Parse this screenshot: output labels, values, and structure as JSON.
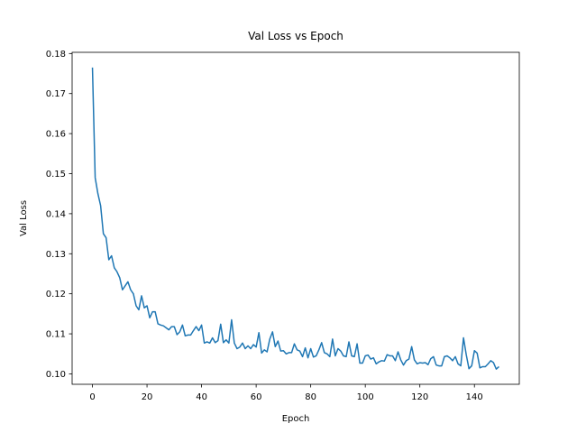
{
  "chart_data": {
    "type": "line",
    "title": "Val Loss vs Epoch",
    "x_label": "Epoch",
    "y_label": "Val Loss",
    "x": [
      0,
      1,
      2,
      3,
      4,
      5,
      6,
      7,
      8,
      9,
      10,
      11,
      12,
      13,
      14,
      15,
      16,
      17,
      18,
      19,
      20,
      21,
      22,
      23,
      24,
      25,
      26,
      27,
      28,
      29,
      30,
      31,
      32,
      33,
      34,
      35,
      36,
      37,
      38,
      39,
      40,
      41,
      42,
      43,
      44,
      45,
      46,
      47,
      48,
      49,
      50,
      51,
      52,
      53,
      54,
      55,
      56,
      57,
      58,
      59,
      60,
      61,
      62,
      63,
      64,
      65,
      66,
      67,
      68,
      69,
      70,
      71,
      72,
      73,
      74,
      75,
      76,
      77,
      78,
      79,
      80,
      81,
      82,
      83,
      84,
      85,
      86,
      87,
      88,
      89,
      90,
      91,
      92,
      93,
      94,
      95,
      96,
      97,
      98,
      99,
      100,
      101,
      102,
      103,
      104,
      105,
      106,
      107,
      108,
      109,
      110,
      111,
      112,
      113,
      114,
      115,
      116,
      117,
      118,
      119,
      120,
      121,
      122,
      123,
      124,
      125,
      126,
      127,
      128,
      129,
      130,
      131,
      132,
      133,
      134,
      135,
      136,
      137,
      138,
      139,
      140,
      141,
      142,
      143,
      144,
      145,
      146,
      147,
      148,
      149
    ],
    "series": [
      {
        "name": "Val Loss",
        "color": "#1f77b4",
        "values": [
          0.1765,
          0.149,
          0.145,
          0.142,
          0.135,
          0.134,
          0.1285,
          0.1295,
          0.1265,
          0.1255,
          0.124,
          0.121,
          0.122,
          0.123,
          0.121,
          0.12,
          0.117,
          0.116,
          0.1195,
          0.1165,
          0.117,
          0.114,
          0.1155,
          0.1155,
          0.1125,
          0.1122,
          0.112,
          0.1115,
          0.111,
          0.1118,
          0.1118,
          0.1098,
          0.1105,
          0.1122,
          0.1095,
          0.1097,
          0.1097,
          0.1108,
          0.1118,
          0.1108,
          0.1122,
          0.1077,
          0.108,
          0.1077,
          0.109,
          0.1078,
          0.1083,
          0.1124,
          0.1078,
          0.1085,
          0.1077,
          0.1135,
          0.1077,
          0.1063,
          0.1067,
          0.1077,
          0.1063,
          0.107,
          0.1063,
          0.1073,
          0.1067,
          0.1103,
          0.1052,
          0.106,
          0.1055,
          0.1087,
          0.1105,
          0.1068,
          0.1082,
          0.1057,
          0.1058,
          0.105,
          0.1053,
          0.1053,
          0.1075,
          0.106,
          0.1057,
          0.1043,
          0.1065,
          0.104,
          0.1063,
          0.1042,
          0.1045,
          0.106,
          0.1078,
          0.1053,
          0.105,
          0.1043,
          0.1087,
          0.1045,
          0.1063,
          0.1057,
          0.1045,
          0.1043,
          0.108,
          0.1045,
          0.1043,
          0.1075,
          0.1027,
          0.1027,
          0.1045,
          0.1047,
          0.1037,
          0.104,
          0.1025,
          0.103,
          0.1033,
          0.1032,
          0.1048,
          0.1045,
          0.1045,
          0.1033,
          0.1055,
          0.1035,
          0.1022,
          0.1033,
          0.1037,
          0.1068,
          0.1035,
          0.1025,
          0.1028,
          0.1027,
          0.1028,
          0.1023,
          0.1038,
          0.1043,
          0.1022,
          0.102,
          0.102,
          0.1043,
          0.1045,
          0.104,
          0.1033,
          0.1043,
          0.1025,
          0.102,
          0.109,
          0.1048,
          0.1013,
          0.102,
          0.1058,
          0.1052,
          0.1015,
          0.1018,
          0.1018,
          0.1025,
          0.1033,
          0.1028,
          0.1012,
          0.1018
        ]
      }
    ],
    "xlim": [
      -7.45,
      156.45
    ],
    "ylim": [
      0.0974,
      0.1803
    ],
    "xticks": [
      0,
      20,
      40,
      60,
      80,
      100,
      120,
      140
    ],
    "yticks": [
      {
        "value": 0.1,
        "label": "0.10"
      },
      0.11,
      0.12,
      0.13,
      0.14,
      0.15,
      0.16,
      0.17,
      0.18
    ],
    "grid": false
  }
}
